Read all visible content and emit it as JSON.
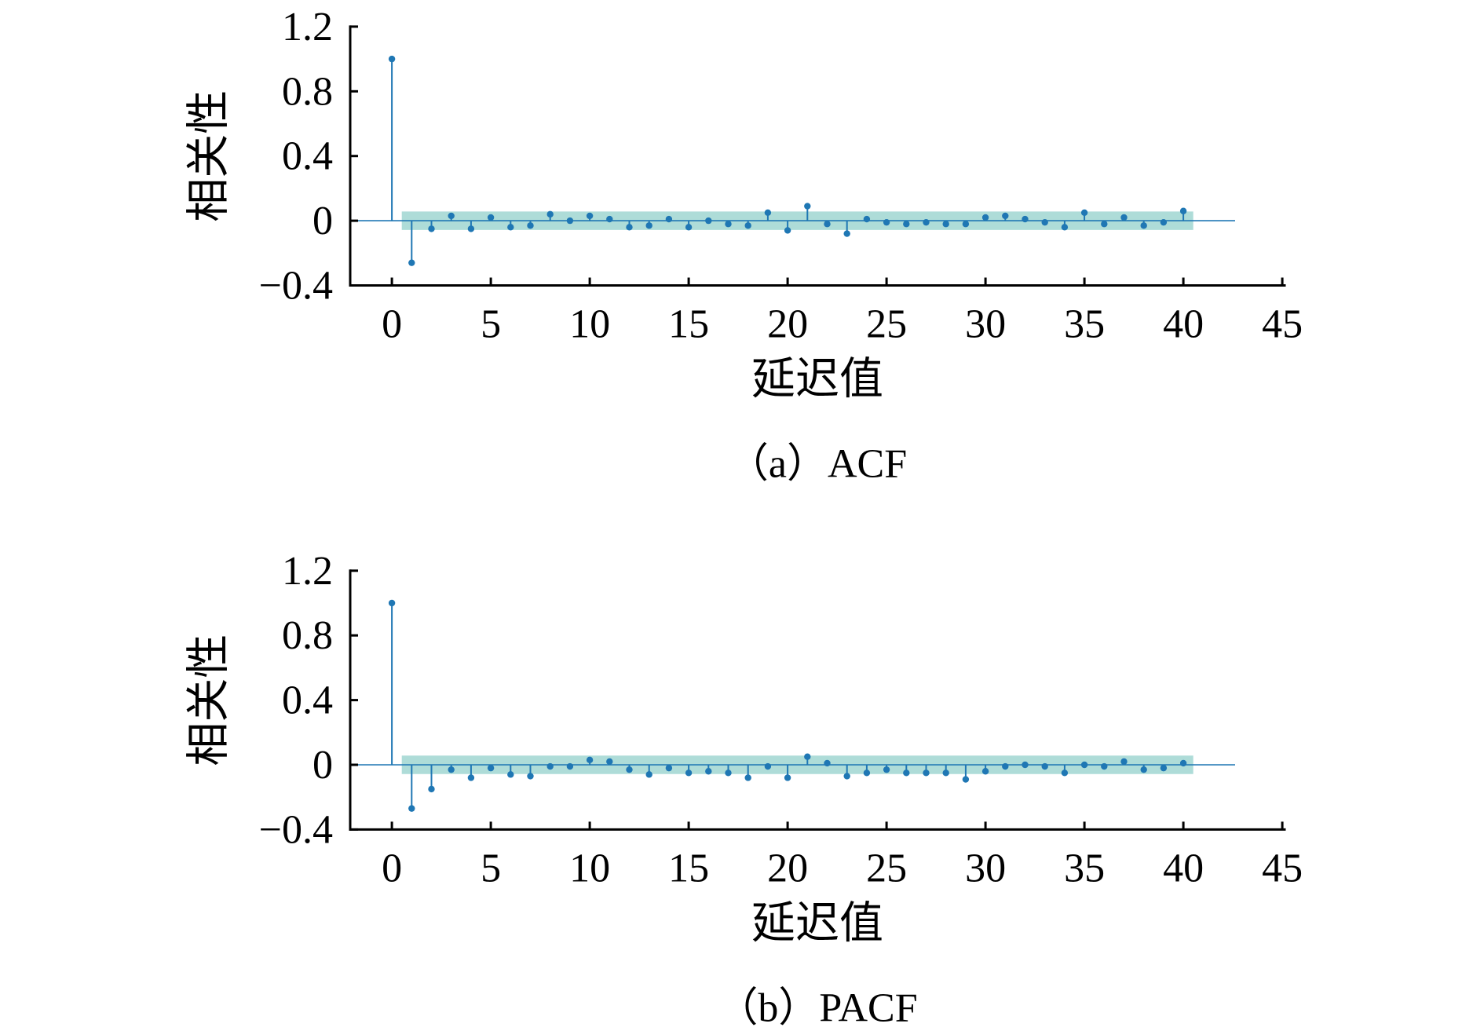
{
  "colors": {
    "stem": "#1f77b4",
    "band": "#aedcd8",
    "axis": "#000000",
    "background": "#ffffff"
  },
  "chart_data": [
    {
      "type": "bar",
      "caption": "（a）ACF",
      "xlabel": "延迟值",
      "ylabel": "相关性",
      "xlim": [
        -2,
        45
      ],
      "ylim": [
        -0.4,
        1.2
      ],
      "grid": false,
      "xticks": [
        {
          "value": 0,
          "label": "0"
        },
        {
          "value": 5,
          "label": "5"
        },
        {
          "value": 10,
          "label": "10"
        },
        {
          "value": 15,
          "label": "15"
        },
        {
          "value": 20,
          "label": "20"
        },
        {
          "value": 25,
          "label": "25"
        },
        {
          "value": 30,
          "label": "30"
        },
        {
          "value": 35,
          "label": "35"
        },
        {
          "value": 40,
          "label": "40"
        },
        {
          "value": 45,
          "label": "45"
        }
      ],
      "yticks": [
        {
          "value": 1.2,
          "label": "1.2"
        },
        {
          "value": 0.8,
          "label": "0.8"
        },
        {
          "value": 0.4,
          "label": "0.4"
        },
        {
          "value": 0,
          "label": "0"
        },
        {
          "value": -0.4,
          "label": "−0.4"
        }
      ],
      "confidence_band": {
        "lower": -0.057,
        "upper": 0.057,
        "x_from": 0.5,
        "x_to": 40.5
      },
      "x": [
        0,
        1,
        2,
        3,
        4,
        5,
        6,
        7,
        8,
        9,
        10,
        11,
        12,
        13,
        14,
        15,
        16,
        17,
        18,
        19,
        20,
        21,
        22,
        23,
        24,
        25,
        26,
        27,
        28,
        29,
        30,
        31,
        32,
        33,
        34,
        35,
        36,
        37,
        38,
        39,
        40
      ],
      "values": [
        1.0,
        -0.26,
        -0.05,
        0.03,
        -0.05,
        0.02,
        -0.04,
        -0.03,
        0.04,
        0.0,
        0.03,
        0.01,
        -0.04,
        -0.03,
        0.01,
        -0.04,
        0.0,
        -0.02,
        -0.03,
        0.05,
        -0.06,
        0.09,
        -0.02,
        -0.08,
        0.01,
        -0.01,
        -0.02,
        -0.01,
        -0.02,
        -0.02,
        0.02,
        0.03,
        0.01,
        -0.01,
        -0.04,
        0.05,
        -0.02,
        0.02,
        -0.03,
        -0.01,
        0.06
      ]
    },
    {
      "type": "bar",
      "caption": "（b）PACF",
      "xlabel": "延迟值",
      "ylabel": "相关性",
      "xlim": [
        -2,
        45
      ],
      "ylim": [
        -0.4,
        1.2
      ],
      "grid": false,
      "xticks": [
        {
          "value": 0,
          "label": "0"
        },
        {
          "value": 5,
          "label": "5"
        },
        {
          "value": 10,
          "label": "10"
        },
        {
          "value": 15,
          "label": "15"
        },
        {
          "value": 20,
          "label": "20"
        },
        {
          "value": 25,
          "label": "25"
        },
        {
          "value": 30,
          "label": "30"
        },
        {
          "value": 35,
          "label": "35"
        },
        {
          "value": 40,
          "label": "40"
        },
        {
          "value": 45,
          "label": "45"
        }
      ],
      "yticks": [
        {
          "value": 1.2,
          "label": "1.2"
        },
        {
          "value": 0.8,
          "label": "0.8"
        },
        {
          "value": 0.4,
          "label": "0.4"
        },
        {
          "value": 0,
          "label": "0"
        },
        {
          "value": -0.4,
          "label": "−0.4"
        }
      ],
      "confidence_band": {
        "lower": -0.057,
        "upper": 0.057,
        "x_from": 0.5,
        "x_to": 40.5
      },
      "x": [
        0,
        1,
        2,
        3,
        4,
        5,
        6,
        7,
        8,
        9,
        10,
        11,
        12,
        13,
        14,
        15,
        16,
        17,
        18,
        19,
        20,
        21,
        22,
        23,
        24,
        25,
        26,
        27,
        28,
        29,
        30,
        31,
        32,
        33,
        34,
        35,
        36,
        37,
        38,
        39,
        40
      ],
      "values": [
        1.0,
        -0.27,
        -0.15,
        -0.03,
        -0.08,
        -0.02,
        -0.06,
        -0.07,
        -0.01,
        -0.01,
        0.03,
        0.02,
        -0.03,
        -0.06,
        -0.02,
        -0.05,
        -0.04,
        -0.05,
        -0.08,
        -0.01,
        -0.08,
        0.05,
        0.01,
        -0.07,
        -0.05,
        -0.03,
        -0.05,
        -0.05,
        -0.05,
        -0.09,
        -0.04,
        -0.01,
        0.0,
        -0.01,
        -0.05,
        0.0,
        -0.01,
        0.02,
        -0.03,
        -0.02,
        0.01
      ]
    }
  ]
}
